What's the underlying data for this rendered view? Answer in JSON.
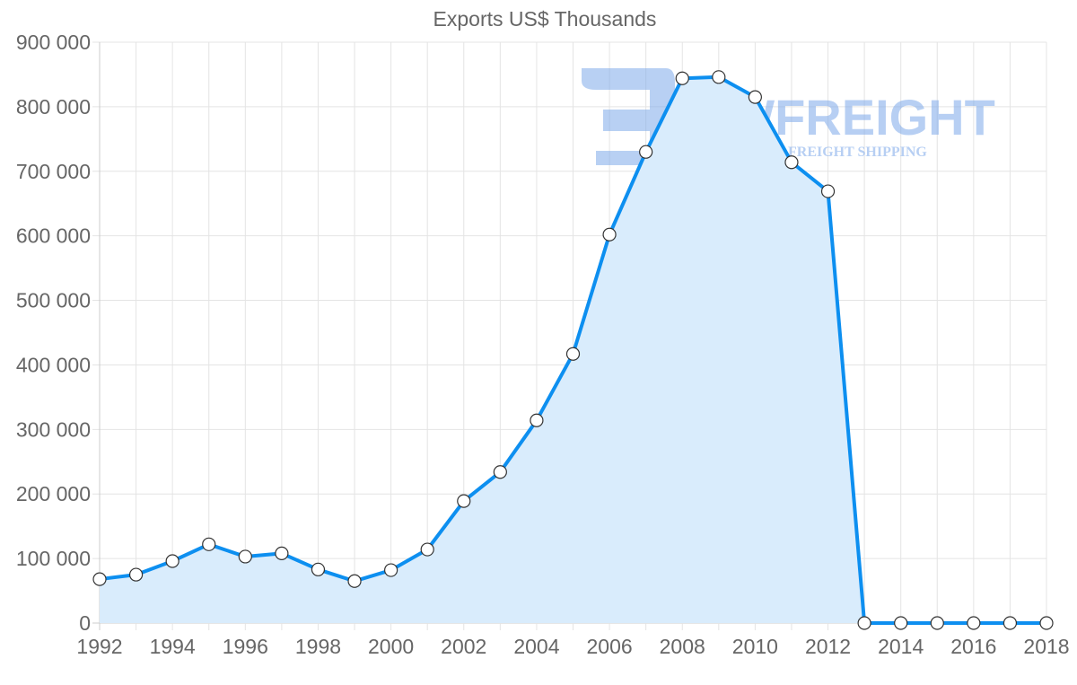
{
  "chart_data": {
    "type": "line",
    "title": "Exports US$ Thousands",
    "xlabel": "",
    "ylabel": "",
    "x": [
      1992,
      1993,
      1994,
      1995,
      1996,
      1997,
      1998,
      1999,
      2000,
      2001,
      2002,
      2003,
      2004,
      2005,
      2006,
      2007,
      2008,
      2009,
      2010,
      2011,
      2012,
      2013,
      2014,
      2015,
      2016,
      2017,
      2018
    ],
    "series": [
      {
        "name": "Exports US$ Thousands",
        "values": [
          68000,
          75000,
          96000,
          122000,
          103000,
          108000,
          83000,
          65000,
          82000,
          114000,
          189000,
          234000,
          314000,
          417000,
          602000,
          730000,
          844000,
          846000,
          815000,
          714000,
          669000,
          0,
          0,
          0,
          0,
          0,
          0
        ],
        "color": "#0d8ff0",
        "fill": "#d9ecfc",
        "area": true
      }
    ],
    "ylim": [
      0,
      900000
    ],
    "y_ticks": [
      "0",
      "100 000",
      "200 000",
      "300 000",
      "400 000",
      "500 000",
      "600 000",
      "700 000",
      "800 000",
      "900 000"
    ],
    "x_ticks": [
      "1992",
      "1994",
      "1996",
      "1998",
      "2000",
      "2002",
      "2004",
      "2006",
      "2008",
      "2010",
      "2012",
      "2014",
      "2016",
      "2018"
    ],
    "grid": true,
    "legend": "none"
  },
  "watermark": {
    "brand": "FWFREIGHT",
    "tagline": "FREIGHT SHIPPING"
  }
}
